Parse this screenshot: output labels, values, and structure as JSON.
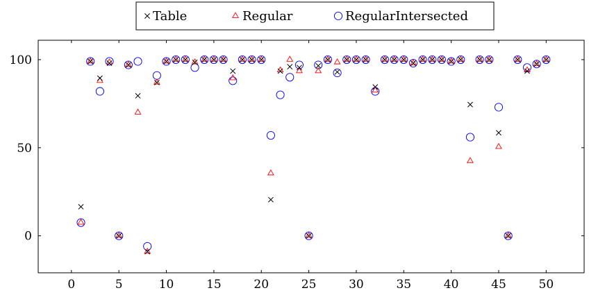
{
  "chart_data": {
    "type": "scatter",
    "x_ticks": [
      0,
      5,
      10,
      15,
      20,
      25,
      30,
      35,
      40,
      45,
      50
    ],
    "y_ticks": [
      0,
      50,
      100
    ],
    "xlim": [
      -3.5,
      54
    ],
    "ylim": [
      -21,
      111
    ],
    "grid": false,
    "legend_position": "top-center",
    "series": [
      {
        "name": "Table",
        "marker": "cross",
        "color": "#000000",
        "points": [
          [
            1,
            16.5
          ],
          [
            2,
            99
          ],
          [
            3,
            89.5
          ],
          [
            4,
            98
          ],
          [
            5,
            0
          ],
          [
            6,
            97
          ],
          [
            7,
            79.5
          ],
          [
            8,
            -9
          ],
          [
            9,
            87
          ],
          [
            10,
            99
          ],
          [
            11,
            100
          ],
          [
            12,
            100
          ],
          [
            13,
            98.5
          ],
          [
            14,
            100
          ],
          [
            15,
            100
          ],
          [
            16,
            100
          ],
          [
            17,
            93.5
          ],
          [
            18,
            100
          ],
          [
            19,
            100
          ],
          [
            20,
            100
          ],
          [
            21,
            20.5
          ],
          [
            22,
            93.5
          ],
          [
            23,
            96
          ],
          [
            24,
            95.5
          ],
          [
            25,
            0
          ],
          [
            26,
            96.5
          ],
          [
            27,
            100
          ],
          [
            28,
            93
          ],
          [
            29,
            100
          ],
          [
            30,
            100
          ],
          [
            31,
            100
          ],
          [
            32,
            84.5
          ],
          [
            33,
            100
          ],
          [
            34,
            100
          ],
          [
            35,
            100
          ],
          [
            36,
            98
          ],
          [
            37,
            100
          ],
          [
            38,
            100
          ],
          [
            39,
            100
          ],
          [
            40,
            99
          ],
          [
            41,
            100
          ],
          [
            42,
            74.5
          ],
          [
            43,
            100
          ],
          [
            44,
            100
          ],
          [
            45,
            58.5
          ],
          [
            46,
            0
          ],
          [
            47,
            100
          ],
          [
            48,
            93.5
          ],
          [
            49,
            97.5
          ],
          [
            50,
            100
          ]
        ]
      },
      {
        "name": "Regular",
        "marker": "triangle",
        "color": "#ff0000",
        "points": [
          [
            1,
            7.5
          ],
          [
            2,
            99
          ],
          [
            3,
            88
          ],
          [
            4,
            98.5
          ],
          [
            5,
            0
          ],
          [
            6,
            97
          ],
          [
            7,
            70
          ],
          [
            8,
            -9
          ],
          [
            9,
            87
          ],
          [
            10,
            99
          ],
          [
            11,
            100
          ],
          [
            12,
            100
          ],
          [
            13,
            98.5
          ],
          [
            14,
            100
          ],
          [
            15,
            100
          ],
          [
            16,
            100
          ],
          [
            17,
            89.5
          ],
          [
            18,
            100
          ],
          [
            19,
            100
          ],
          [
            20,
            100
          ],
          [
            21,
            35.5
          ],
          [
            22,
            94
          ],
          [
            23,
            100
          ],
          [
            24,
            93.5
          ],
          [
            25,
            0
          ],
          [
            26,
            93.5
          ],
          [
            27,
            100
          ],
          [
            28,
            98.5
          ],
          [
            29,
            100
          ],
          [
            30,
            100
          ],
          [
            31,
            100
          ],
          [
            32,
            82.5
          ],
          [
            33,
            100
          ],
          [
            34,
            100
          ],
          [
            35,
            100
          ],
          [
            36,
            98
          ],
          [
            37,
            100
          ],
          [
            38,
            100
          ],
          [
            39,
            100
          ],
          [
            40,
            99
          ],
          [
            41,
            100
          ],
          [
            42,
            42.5
          ],
          [
            43,
            100
          ],
          [
            44,
            100
          ],
          [
            45,
            50.5
          ],
          [
            46,
            0
          ],
          [
            47,
            100
          ],
          [
            48,
            94
          ],
          [
            49,
            97.5
          ],
          [
            50,
            100
          ]
        ]
      },
      {
        "name": "RegularIntersected",
        "marker": "circle",
        "color": "#0000ff",
        "points": [
          [
            1,
            7.5
          ],
          [
            2,
            99
          ],
          [
            3,
            82
          ],
          [
            4,
            99
          ],
          [
            5,
            0
          ],
          [
            6,
            97
          ],
          [
            7,
            99
          ],
          [
            8,
            -6
          ],
          [
            9,
            91
          ],
          [
            10,
            99
          ],
          [
            11,
            100
          ],
          [
            12,
            100
          ],
          [
            13,
            95.5
          ],
          [
            14,
            100
          ],
          [
            15,
            100
          ],
          [
            16,
            100
          ],
          [
            17,
            88
          ],
          [
            18,
            100
          ],
          [
            19,
            100
          ],
          [
            20,
            100
          ],
          [
            21,
            57
          ],
          [
            22,
            80
          ],
          [
            23,
            90
          ],
          [
            24,
            97
          ],
          [
            25,
            0
          ],
          [
            26,
            97
          ],
          [
            27,
            100
          ],
          [
            28,
            92.5
          ],
          [
            29,
            100
          ],
          [
            30,
            100
          ],
          [
            31,
            100
          ],
          [
            32,
            82
          ],
          [
            33,
            100
          ],
          [
            34,
            100
          ],
          [
            35,
            100
          ],
          [
            36,
            98
          ],
          [
            37,
            100
          ],
          [
            38,
            100
          ],
          [
            39,
            100
          ],
          [
            40,
            99
          ],
          [
            41,
            100
          ],
          [
            42,
            56
          ],
          [
            43,
            100
          ],
          [
            44,
            100
          ],
          [
            45,
            73
          ],
          [
            46,
            0
          ],
          [
            47,
            100
          ],
          [
            48,
            95.5
          ],
          [
            49,
            97.5
          ],
          [
            50,
            100
          ]
        ]
      }
    ]
  }
}
